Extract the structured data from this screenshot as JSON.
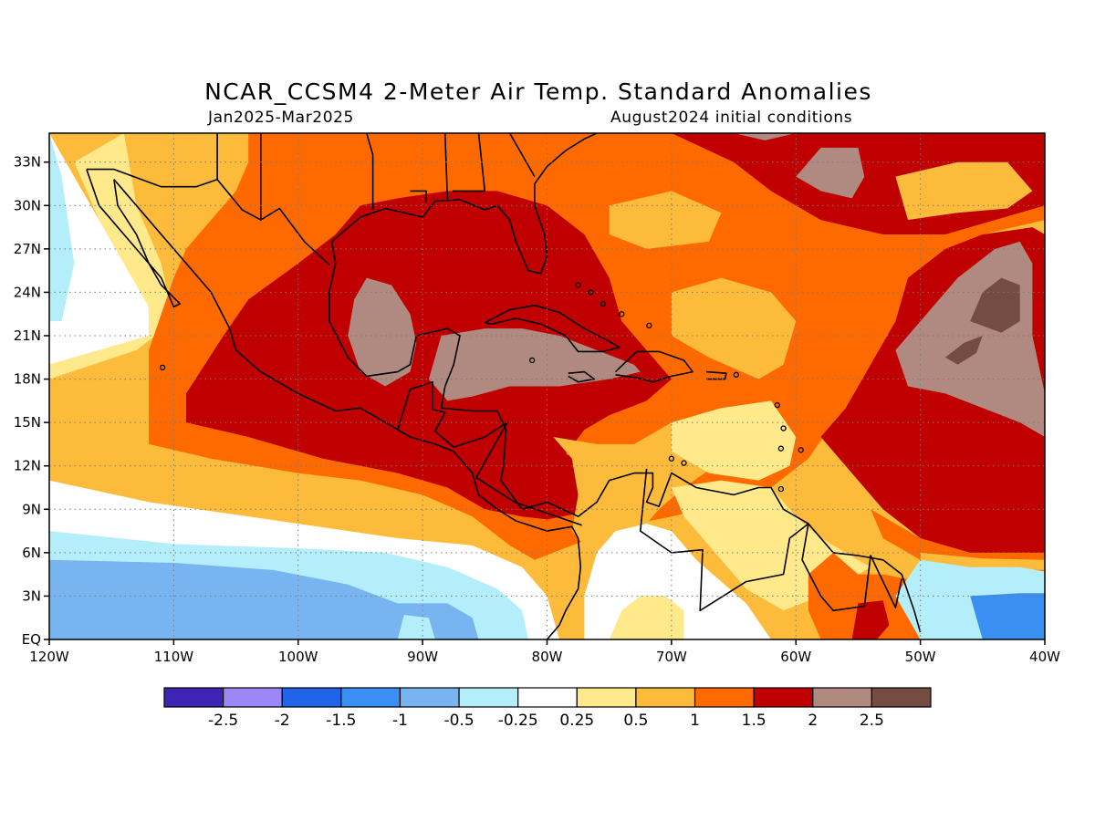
{
  "title": "NCAR_CCSM4 2-Meter Air Temp. Standard Anomalies",
  "period": "Jan2025-Mar2025",
  "initial_conditions": "August2024 initial conditions",
  "map": {
    "projection": "equirectangular",
    "lon_range": [
      -120,
      -40
    ],
    "lat_range": [
      0,
      35
    ],
    "lon_ticks": [
      "120W",
      "110W",
      "100W",
      "90W",
      "80W",
      "70W",
      "60W",
      "50W",
      "40W"
    ],
    "lat_ticks": [
      "EQ",
      "3N",
      "6N",
      "9N",
      "12N",
      "15N",
      "18N",
      "21N",
      "24N",
      "27N",
      "30N",
      "33N"
    ],
    "grid": "dotted",
    "variable": "2-meter air temperature standard anomaly"
  },
  "colorbar": {
    "colors": [
      "#3d24b4",
      "#9b87f5",
      "#1f64e9",
      "#3a8ff2",
      "#78b4f0",
      "#b3eefa",
      "#ffffff",
      "#ffe98a",
      "#fdbb3c",
      "#ff6a00",
      "#c00000",
      "#b08980",
      "#744c42"
    ],
    "labels": [
      "-2.5",
      "-2",
      "-1.5",
      "-1",
      "-0.5",
      "-0.25",
      "0.25",
      "0.5",
      "1",
      "1.5",
      "2",
      "2.5"
    ]
  },
  "regions": [
    {
      "name": "western-caribbean-gulf-core",
      "level": "2 to 2.5",
      "color": "#b08980"
    },
    {
      "name": "central-atlantic-core",
      "level": "above 2.5",
      "color": "#744c42"
    },
    {
      "name": "eastern-pacific-equatorial",
      "level": "-1 to -0.5",
      "color": "#78b4f0"
    },
    {
      "name": "atlantic-equatorial-east",
      "level": "-1.5 to -1",
      "color": "#3a8ff2"
    }
  ]
}
